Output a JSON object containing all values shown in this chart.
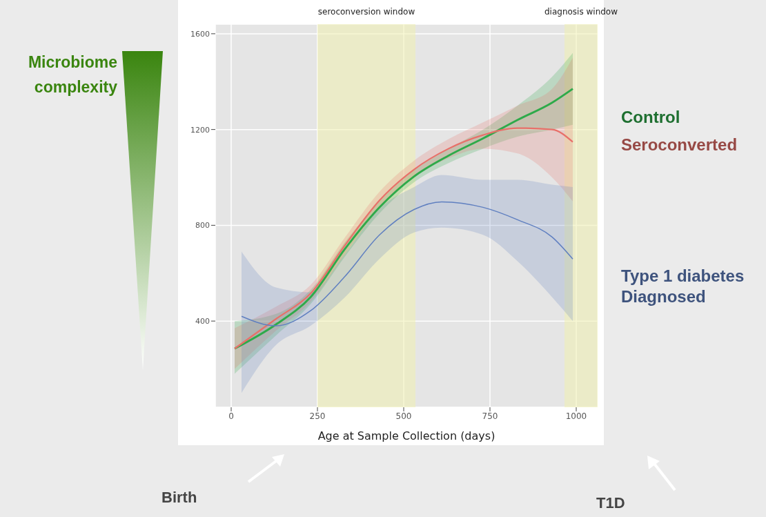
{
  "chart_data": {
    "type": "line",
    "xlabel": "Age at Sample Collection (days)",
    "xlim": [
      -46,
      1062
    ],
    "xticks": [
      0,
      250,
      500,
      750,
      1000
    ],
    "ylim": [
      40,
      1640
    ],
    "yticks": [
      400,
      800,
      1200,
      1600
    ],
    "grid": true,
    "legend": "right",
    "marker": "none",
    "line_style": "solid",
    "series": [
      {
        "name": "Control",
        "color": "#2eaa4a",
        "x": [
          10,
          130,
          230,
          330,
          430,
          530,
          630,
          730,
          830,
          930,
          990
        ],
        "values": [
          285,
          386,
          500,
          702,
          875,
          1004,
          1091,
          1163,
          1240,
          1312,
          1370
        ],
        "lower": [
          180,
          340,
          470,
          670,
          850,
          980,
          1060,
          1120,
          1170,
          1200,
          1220
        ],
        "upper": [
          400,
          430,
          530,
          730,
          900,
          1030,
          1120,
          1200,
          1300,
          1420,
          1520
        ]
      },
      {
        "name": "Seroconverted",
        "color": "#e8706a",
        "x": [
          10,
          130,
          230,
          330,
          430,
          530,
          630,
          730,
          830,
          930,
          990
        ],
        "values": [
          285,
          409,
          515,
          717,
          904,
          1033,
          1120,
          1177,
          1206,
          1200,
          1148
        ],
        "lower": [
          200,
          360,
          480,
          680,
          870,
          1000,
          1080,
          1120,
          1100,
          1000,
          900
        ],
        "upper": [
          370,
          460,
          550,
          750,
          940,
          1070,
          1160,
          1230,
          1300,
          1370,
          1500
        ]
      },
      {
        "name": "Type 1 diabetes Diagnosed",
        "color": "#5f7fc0",
        "x": [
          30,
          130,
          230,
          330,
          430,
          530,
          610,
          730,
          830,
          930,
          990
        ],
        "values": [
          420,
          380,
          443,
          587,
          760,
          866,
          898,
          875,
          823,
          751,
          659
        ],
        "lower": [
          100,
          300,
          380,
          500,
          660,
          770,
          790,
          760,
          650,
          500,
          400
        ],
        "upper": [
          690,
          540,
          520,
          680,
          870,
          960,
          1010,
          990,
          990,
          970,
          960
        ]
      }
    ],
    "bands": [
      {
        "axis": "x",
        "from": 250,
        "to": 534,
        "label": "seroconversion window",
        "color": "#f0f0b0"
      },
      {
        "axis": "x",
        "from": 966,
        "to": 1062,
        "label": "diagnosis window",
        "color": "#f0f0b0"
      }
    ],
    "annotations": [
      "Microbiome complexity",
      "Birth",
      "T1D"
    ]
  }
}
